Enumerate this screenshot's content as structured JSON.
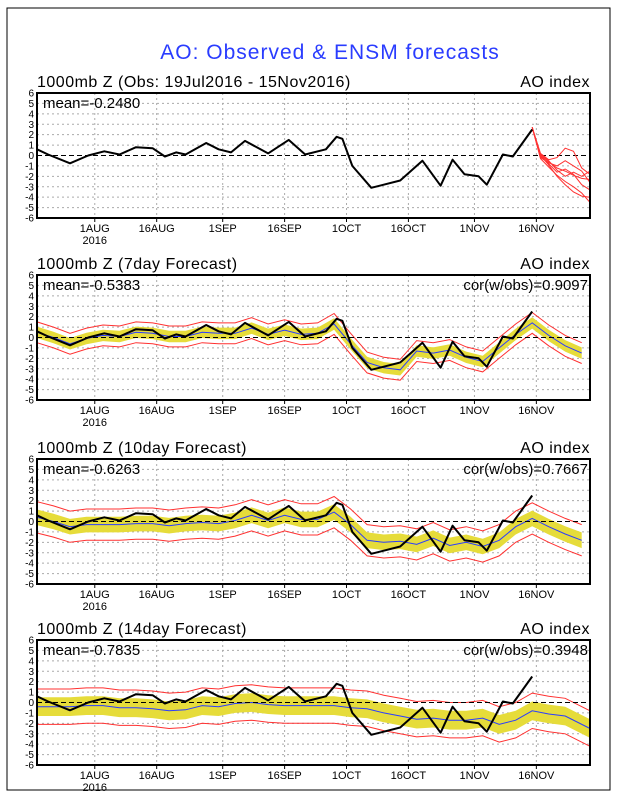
{
  "chart_data": {
    "type": "line",
    "title": "AO: Observed & ENSM forecasts",
    "ylim": [
      -6,
      6
    ],
    "yticks": [
      6,
      5,
      4,
      3,
      2,
      1,
      0,
      -1,
      -2,
      -3,
      -4,
      -5,
      -6
    ],
    "x_unit": "days since 18 Jul 2016",
    "xlim": [
      0,
      134
    ],
    "xticks": [
      {
        "day": 14,
        "label": "1AUG",
        "sublabel": "2016"
      },
      {
        "day": 29,
        "label": "16AUG"
      },
      {
        "day": 45,
        "label": "1SEP"
      },
      {
        "day": 60,
        "label": "16SEP"
      },
      {
        "day": 75,
        "label": "1OCT"
      },
      {
        "day": 90,
        "label": "16OCT"
      },
      {
        "day": 106,
        "label": "1NOV"
      },
      {
        "day": 121,
        "label": "16NOV"
      }
    ],
    "colors": {
      "observed": "#000000",
      "mean": "#2a3cff",
      "spread": "#e6dc3a",
      "bounds": "#ff3030",
      "members": "#ff3030",
      "title": "#2a3cff"
    },
    "observed": {
      "days": [
        0,
        2.7,
        8,
        12.4,
        16.3,
        20,
        24,
        28,
        31,
        33.7,
        36,
        41,
        44,
        47,
        50.4,
        56,
        61,
        65,
        70,
        72.6,
        74,
        76.4,
        81,
        88,
        93.4,
        97.8,
        100.7,
        103.6,
        107,
        109,
        112.9,
        115.3,
        120
      ],
      "values": [
        0.6,
        0.1,
        -0.75,
        0,
        0.4,
        0.1,
        0.8,
        0.7,
        -0.1,
        0.3,
        0.1,
        1.2,
        0.6,
        0.3,
        1.4,
        0.2,
        1.5,
        0.1,
        0.6,
        1.8,
        1.6,
        -1.0,
        -3.1,
        -2.4,
        -0.5,
        -2.9,
        -0.4,
        -1.8,
        -2.0,
        -2.8,
        0.1,
        -0.1,
        2.5
      ]
    },
    "panels": [
      {
        "title": "1000mb Z (Obs: 19Jul2016 - 15Nov2016)",
        "right_label": "AO index",
        "mean_label": "mean=-0.2480",
        "members": {
          "days": [
            120,
            122,
            124,
            126,
            128,
            130,
            132,
            134
          ],
          "series": [
            [
              2.7,
              0,
              -0.6,
              -1.2,
              -1.5,
              -1.9,
              -2.2,
              -2.3
            ],
            [
              2.7,
              -0.3,
              -1.1,
              -1.9,
              -2.5,
              -3.0,
              -3.6,
              -4.5
            ],
            [
              2.7,
              0.2,
              -0.4,
              -0.2,
              0.7,
              0.4,
              -1.2,
              -1.8
            ],
            [
              2.7,
              -0.1,
              -0.8,
              -1.6,
              -1.3,
              -1.8,
              -2.8,
              -3.3
            ],
            [
              2.7,
              0,
              -0.9,
              -2.0,
              -2.8,
              -3.5,
              -3.9,
              -4.0
            ],
            [
              2.7,
              -0.2,
              -0.7,
              -1.0,
              -0.5,
              -1.0,
              -1.5,
              -2.6
            ],
            [
              2.7,
              0.1,
              -0.5,
              -1.4,
              -2.0,
              -1.6,
              -2.0,
              -1.5
            ]
          ]
        }
      },
      {
        "title": "1000mb Z (7day Forecast)",
        "right_label": "AO index",
        "mean_label": "mean=-0.5383",
        "cor_label": "cor(w/obs)=0.9097",
        "forecast": {
          "days": [
            0,
            4,
            8,
            12,
            16,
            20,
            24,
            28,
            32,
            36,
            40,
            44,
            48,
            52,
            56,
            60,
            64,
            68,
            72,
            76,
            80,
            84,
            88,
            92,
            96,
            100,
            104,
            108,
            112,
            116,
            120,
            124,
            128,
            132
          ],
          "mean": [
            0.5,
            0,
            -0.6,
            -0.1,
            0.2,
            0.1,
            0.5,
            0.4,
            0.1,
            0.1,
            0.5,
            0.4,
            0.4,
            0.9,
            0.3,
            0.7,
            0.3,
            0.4,
            1.3,
            -0.6,
            -2.4,
            -2.9,
            -3.1,
            -1.3,
            -1.5,
            -1.2,
            -1.9,
            -2.3,
            -1.0,
            0.3,
            1.4,
            0.2,
            -0.8,
            -1.5
          ],
          "spread": 0.55,
          "bounds": 1.0
        }
      },
      {
        "title": "1000mb Z (10day Forecast)",
        "right_label": "AO index",
        "mean_label": "mean=-0.6263",
        "cor_label": "cor(w/obs)=0.7667",
        "forecast": {
          "days": [
            0,
            4,
            8,
            12,
            16,
            20,
            24,
            28,
            32,
            36,
            40,
            44,
            48,
            52,
            56,
            60,
            64,
            68,
            72,
            76,
            80,
            84,
            88,
            92,
            96,
            100,
            104,
            108,
            112,
            116,
            120,
            124,
            128,
            132
          ],
          "mean": [
            0.4,
            0,
            -0.5,
            -0.3,
            -0.3,
            -0.3,
            -0.2,
            -0.2,
            -0.4,
            -0.2,
            -0.1,
            -0.2,
            0.1,
            0.6,
            0.1,
            0.6,
            0.2,
            0.2,
            0.9,
            -0.3,
            -1.8,
            -2.0,
            -1.9,
            -2.2,
            -1.6,
            -2.3,
            -2.0,
            -2.4,
            -1.8,
            -0.5,
            0.3,
            -0.5,
            -1.2,
            -1.8
          ],
          "spread": 0.75,
          "bounds": 1.5
        }
      },
      {
        "title": "1000mb Z (14day Forecast)",
        "right_label": "AO index",
        "mean_label": "mean=-0.7835",
        "cor_label": "cor(w/obs)=0.3948",
        "forecast": {
          "days": [
            0,
            4,
            8,
            12,
            16,
            20,
            24,
            28,
            32,
            36,
            40,
            44,
            48,
            52,
            56,
            60,
            64,
            68,
            72,
            76,
            80,
            84,
            88,
            92,
            96,
            100,
            104,
            108,
            112,
            116,
            120,
            124,
            128,
            134
          ],
          "mean": [
            -0.4,
            -0.4,
            -0.4,
            -0.3,
            -0.3,
            -0.5,
            -0.5,
            -0.6,
            -0.8,
            -0.7,
            -0.3,
            -0.4,
            -0.1,
            0,
            -0.2,
            -0.3,
            -0.3,
            -0.3,
            -0.3,
            -0.5,
            -0.6,
            -1.0,
            -1.3,
            -1.6,
            -1.5,
            -1.7,
            -1.7,
            -1.5,
            -2.1,
            -1.7,
            -0.8,
            -1.1,
            -1.3,
            -2.5
          ],
          "spread": 0.9,
          "bounds": 1.7
        }
      }
    ]
  }
}
